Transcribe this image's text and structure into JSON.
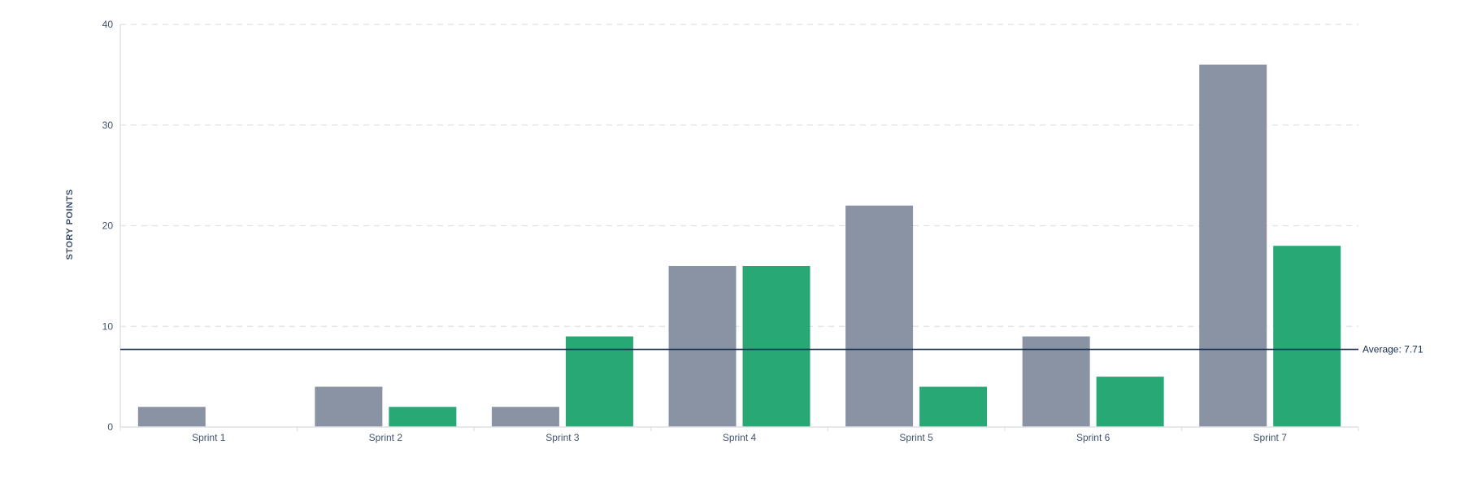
{
  "chart_data": {
    "type": "bar",
    "ylabel": "STORY POINTS",
    "xlabel": "",
    "ylim": [
      0,
      40
    ],
    "yticks": [
      0,
      10,
      20,
      30,
      40
    ],
    "grid": true,
    "categories": [
      "Sprint 1",
      "Sprint 2",
      "Sprint 3",
      "Sprint 4",
      "Sprint 5",
      "Sprint 6",
      "Sprint 7"
    ],
    "series": [
      {
        "values": [
          2,
          4,
          2,
          16,
          22,
          9,
          36
        ],
        "color": "#8993a4"
      },
      {
        "values": [
          0,
          2,
          9,
          16,
          4,
          5,
          18
        ],
        "color": "#27a874"
      }
    ],
    "average": {
      "label": "Average: 7.71",
      "value": 7.71,
      "color": "#172b4d"
    }
  }
}
